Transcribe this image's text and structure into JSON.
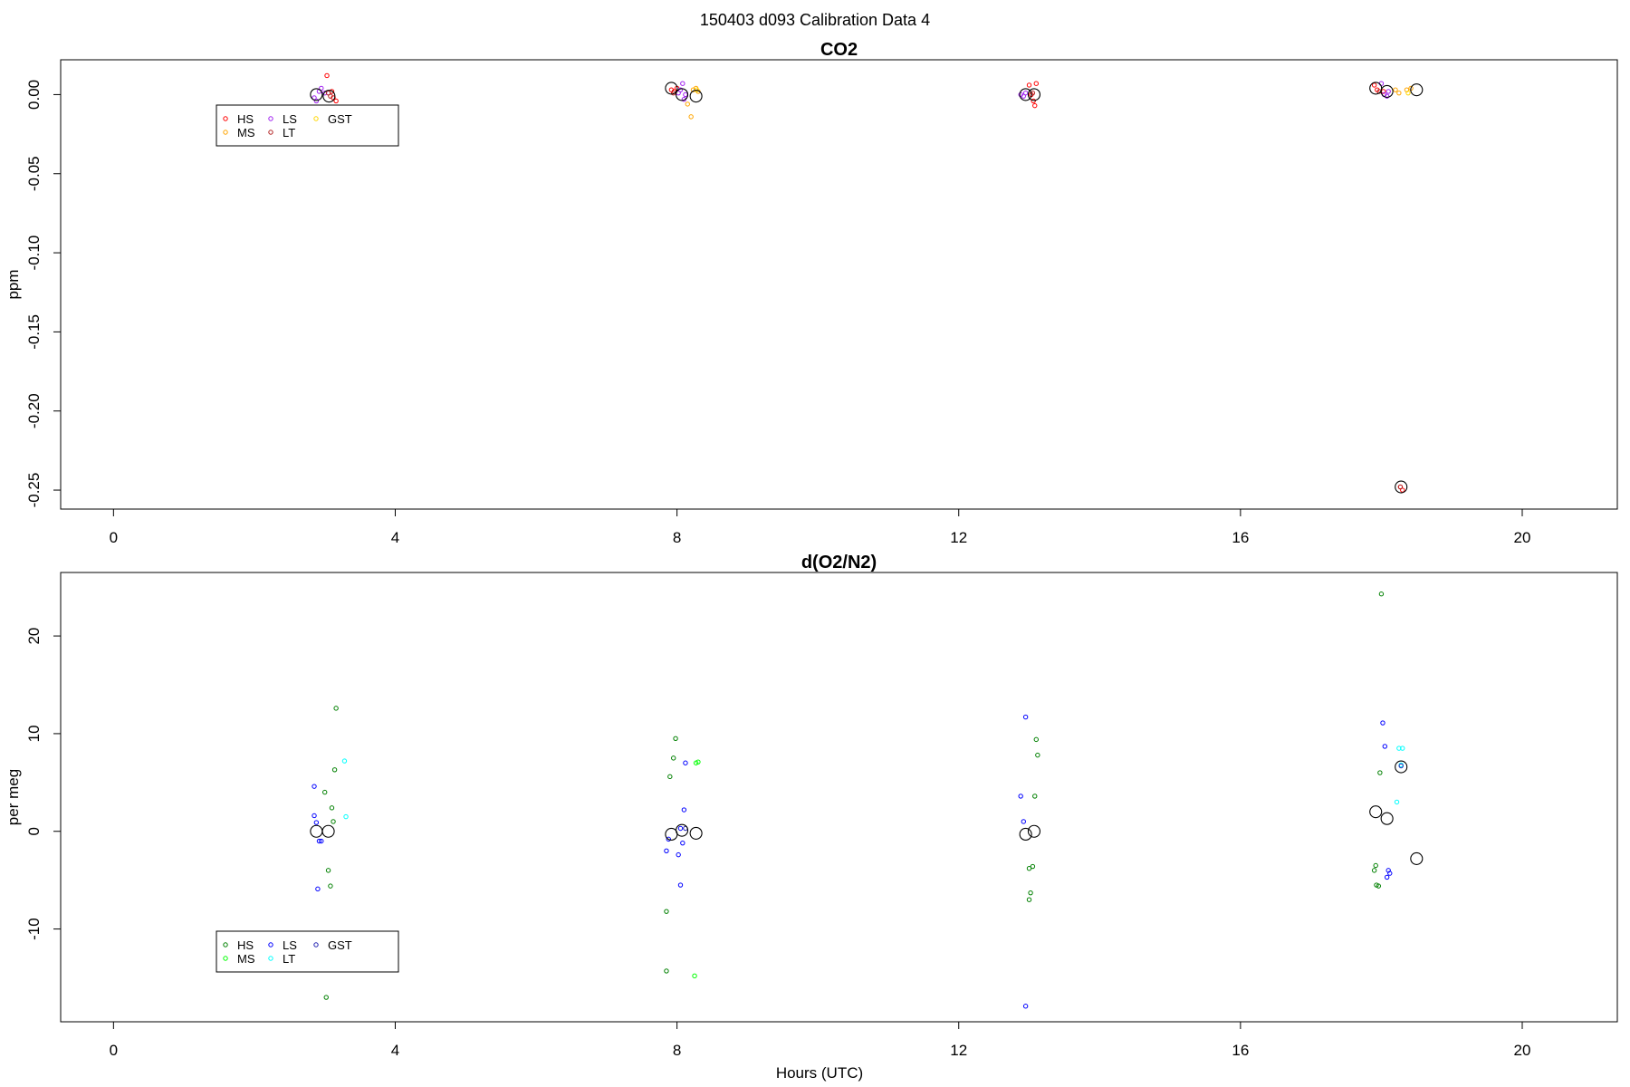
{
  "figure": {
    "title": "150403   d093   Calibration Data 4"
  },
  "chart_data": [
    {
      "type": "scatter",
      "title": "CO2",
      "xlabel": "",
      "ylabel": "ppm",
      "xlim": [
        -0.75,
        21.35
      ],
      "ylim": [
        -0.262,
        0.022
      ],
      "xticks": [
        0,
        4,
        8,
        12,
        16,
        20
      ],
      "yticks": [
        0.0,
        -0.05,
        -0.1,
        -0.15,
        -0.2,
        -0.25
      ],
      "ytick_labels": [
        "0.00",
        "-0.05",
        "-0.10",
        "-0.15",
        "-0.20",
        "-0.25"
      ],
      "grid": false,
      "legend": {
        "placement": "top-left",
        "entries": [
          {
            "label": "HS",
            "color": "#ff0000"
          },
          {
            "label": "MS",
            "color": "#ffa500"
          },
          {
            "label": "LS",
            "color": "#a020f0"
          },
          {
            "label": "LT",
            "color": "#b22222"
          },
          {
            "label": "GST",
            "color": "#ffd700"
          }
        ]
      },
      "series": [
        {
          "name": "HS",
          "color": "#ff0000",
          "points": [
            [
              3.03,
              0.012
            ],
            [
              3.1,
              0.002
            ],
            [
              3.12,
              -0.002
            ],
            [
              3.16,
              -0.004
            ],
            [
              7.92,
              0.003
            ],
            [
              7.96,
              0.002
            ],
            [
              8.0,
              0.004
            ],
            [
              13.0,
              0.006
            ],
            [
              13.03,
              0.0
            ],
            [
              13.06,
              -0.004
            ],
            [
              13.08,
              -0.007
            ],
            [
              13.1,
              0.007
            ],
            [
              17.9,
              0.006
            ],
            [
              17.94,
              0.003
            ],
            [
              18.03,
              0.002
            ],
            [
              18.27,
              -0.248
            ],
            [
              18.3,
              -0.25
            ]
          ]
        },
        {
          "name": "MS",
          "color": "#ffa500",
          "points": [
            [
              8.15,
              -0.006
            ],
            [
              8.2,
              -0.014
            ],
            [
              8.23,
              0.003
            ],
            [
              8.27,
              0.004
            ],
            [
              8.3,
              0.002
            ],
            [
              18.2,
              0.003
            ],
            [
              18.25,
              0.001
            ],
            [
              18.36,
              0.003
            ],
            [
              18.42,
              0.004
            ]
          ]
        },
        {
          "name": "LS",
          "color": "#a020f0",
          "points": [
            [
              2.85,
              -0.002
            ],
            [
              2.88,
              -0.004
            ],
            [
              2.92,
              0.002
            ],
            [
              2.95,
              0.004
            ],
            [
              3.0,
              0.001
            ],
            [
              8.02,
              0.001
            ],
            [
              8.05,
              0.003
            ],
            [
              8.08,
              0.007
            ],
            [
              8.1,
              -0.003
            ],
            [
              8.12,
              0.0
            ],
            [
              12.88,
              0.0
            ],
            [
              12.92,
              -0.001
            ],
            [
              12.95,
              0.001
            ],
            [
              18.0,
              0.007
            ],
            [
              18.04,
              0.0
            ],
            [
              18.08,
              -0.001
            ],
            [
              18.1,
              0.002
            ]
          ]
        },
        {
          "name": "LT",
          "color": "#b22222",
          "points": [
            [
              3.05,
              0.001
            ],
            [
              3.08,
              -0.001
            ],
            [
              7.95,
              0.001
            ],
            [
              13.05,
              0.001
            ],
            [
              17.97,
              0.002
            ],
            [
              18.27,
              -0.248
            ]
          ]
        },
        {
          "name": "GST",
          "color": "#ffd700",
          "points": [
            [
              8.28,
              0.003
            ],
            [
              18.38,
              0.001
            ]
          ]
        },
        {
          "name": "",
          "color": "#000000",
          "marker": "large-circle",
          "points": [
            [
              2.88,
              0.0
            ],
            [
              3.06,
              -0.001
            ],
            [
              7.92,
              0.004
            ],
            [
              8.07,
              0.0
            ],
            [
              8.27,
              -0.001
            ],
            [
              12.95,
              0.0
            ],
            [
              13.07,
              0.0
            ],
            [
              17.92,
              0.004
            ],
            [
              18.08,
              0.002
            ],
            [
              18.28,
              -0.248
            ],
            [
              18.5,
              0.003
            ]
          ]
        }
      ]
    },
    {
      "type": "scatter",
      "title": "d(O2/N2)",
      "xlabel": "Hours (UTC)",
      "ylabel": "per meg",
      "xlim": [
        -0.75,
        21.35
      ],
      "ylim": [
        -19.5,
        26.5
      ],
      "xticks": [
        0,
        4,
        8,
        12,
        16,
        20
      ],
      "yticks": [
        20,
        10,
        0,
        -10
      ],
      "ytick_labels": [
        "20",
        "10",
        "0",
        "-10"
      ],
      "grid": false,
      "legend": {
        "placement": "bottom-left",
        "entries": [
          {
            "label": "HS",
            "color": "#008000"
          },
          {
            "label": "MS",
            "color": "#00ff00"
          },
          {
            "label": "LS",
            "color": "#0000ff"
          },
          {
            "label": "LT",
            "color": "#00ffff"
          },
          {
            "label": "GST",
            "color": "#2020b0"
          }
        ]
      },
      "series": [
        {
          "name": "HS",
          "color": "#008000",
          "points": [
            [
              3.0,
              4.0
            ],
            [
              3.05,
              -4.0
            ],
            [
              3.08,
              -5.6
            ],
            [
              3.1,
              2.4
            ],
            [
              3.12,
              1.0
            ],
            [
              3.14,
              6.3
            ],
            [
              3.16,
              12.6
            ],
            [
              3.02,
              -17.0
            ],
            [
              7.85,
              -8.2
            ],
            [
              7.85,
              -14.3
            ],
            [
              7.9,
              5.6
            ],
            [
              7.95,
              7.5
            ],
            [
              7.98,
              9.5
            ],
            [
              13.0,
              -3.8
            ],
            [
              13.05,
              -3.6
            ],
            [
              13.02,
              -6.3
            ],
            [
              13.0,
              -7.0
            ],
            [
              13.08,
              3.6
            ],
            [
              13.1,
              9.4
            ],
            [
              13.12,
              7.8
            ],
            [
              17.9,
              -4.0
            ],
            [
              17.92,
              -3.5
            ],
            [
              17.93,
              -5.5
            ],
            [
              17.96,
              -5.6
            ],
            [
              17.98,
              6.0
            ],
            [
              18.0,
              24.3
            ]
          ]
        },
        {
          "name": "MS",
          "color": "#00ff00",
          "points": [
            [
              8.25,
              -14.8
            ],
            [
              8.27,
              7.0
            ],
            [
              8.3,
              7.1
            ]
          ]
        },
        {
          "name": "LS",
          "color": "#0000ff",
          "points": [
            [
              2.85,
              4.6
            ],
            [
              2.85,
              1.6
            ],
            [
              2.88,
              0.9
            ],
            [
              2.92,
              -1.0
            ],
            [
              2.95,
              -1.0
            ],
            [
              2.9,
              -5.9
            ],
            [
              7.85,
              -2.0
            ],
            [
              7.88,
              -0.8
            ],
            [
              8.05,
              -5.5
            ],
            [
              8.08,
              -1.2
            ],
            [
              8.02,
              -2.4
            ],
            [
              8.1,
              2.2
            ],
            [
              8.12,
              7.0
            ],
            [
              8.05,
              0.3
            ],
            [
              12.88,
              3.6
            ],
            [
              12.92,
              1.0
            ],
            [
              12.95,
              11.7
            ],
            [
              12.95,
              -17.9
            ],
            [
              18.02,
              11.1
            ],
            [
              18.05,
              8.7
            ],
            [
              18.08,
              -4.7
            ],
            [
              18.12,
              -4.3
            ],
            [
              18.1,
              -4.0
            ]
          ]
        },
        {
          "name": "LT",
          "color": "#00ffff",
          "points": [
            [
              3.28,
              7.2
            ],
            [
              3.3,
              1.5
            ],
            [
              18.22,
              3.0
            ],
            [
              18.25,
              8.5
            ],
            [
              18.3,
              8.5
            ],
            [
              18.28,
              6.8
            ]
          ]
        },
        {
          "name": "GST",
          "color": "#2020b0",
          "points": [
            [
              8.12,
              0.3
            ],
            [
              18.28,
              6.7
            ]
          ]
        },
        {
          "name": "",
          "color": "#000000",
          "marker": "large-circle",
          "points": [
            [
              2.88,
              0.0
            ],
            [
              3.05,
              0.0
            ],
            [
              7.92,
              -0.3
            ],
            [
              8.07,
              0.1
            ],
            [
              8.27,
              -0.2
            ],
            [
              12.95,
              -0.3
            ],
            [
              13.07,
              0.0
            ],
            [
              17.92,
              2.0
            ],
            [
              18.08,
              1.3
            ],
            [
              18.28,
              6.6
            ],
            [
              18.5,
              -2.8
            ]
          ]
        }
      ]
    }
  ]
}
